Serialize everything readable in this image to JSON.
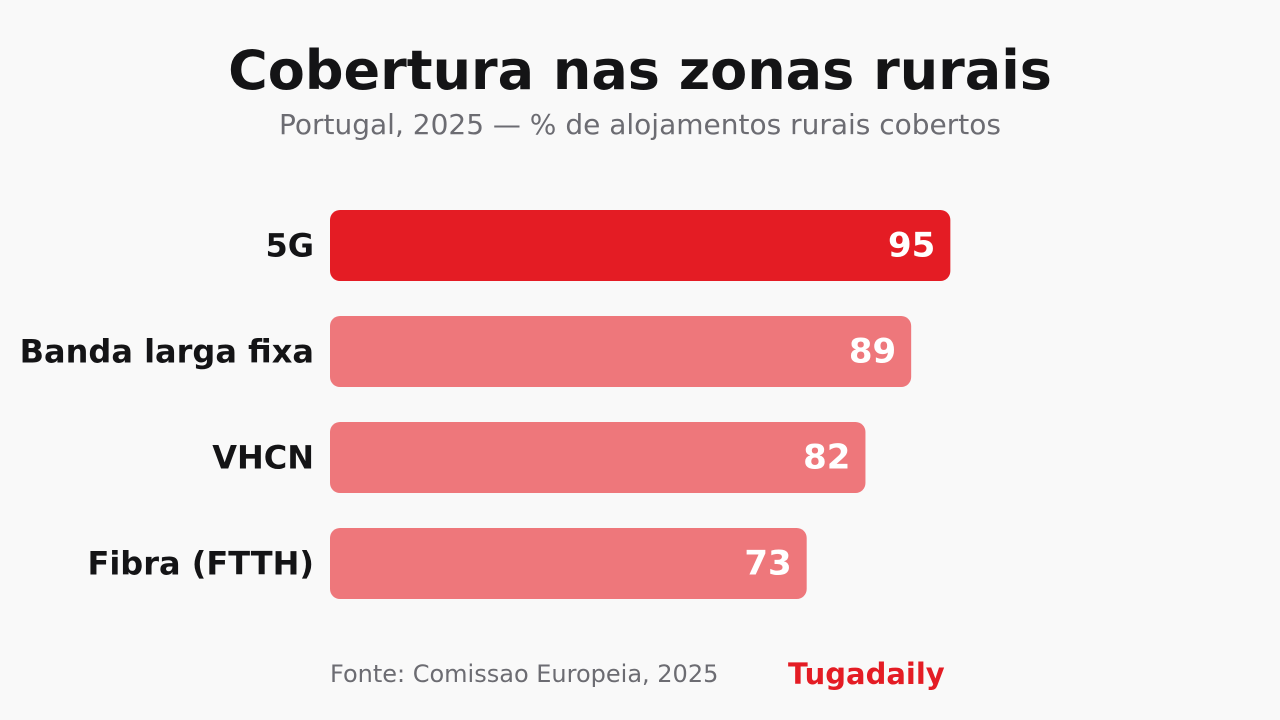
{
  "header": {
    "title": "Cobertura nas zonas rurais",
    "subtitle": "Portugal, 2025 — % de alojamentos rurais cobertos"
  },
  "footer": {
    "source": "Fonte: Comissao Europeia, 2025",
    "brand": "Tugadaily"
  },
  "colors": {
    "highlight": "#e41c24",
    "bar": "#ee777b",
    "brand": "#e41c24"
  },
  "chart_data": {
    "type": "bar",
    "orientation": "horizontal",
    "title": "Cobertura nas zonas rurais",
    "subtitle": "Portugal, 2025 — % de alojamentos rurais cobertos",
    "categories": [
      "5G",
      "Banda larga fixa",
      "VHCN",
      "Fibra (FTTH)"
    ],
    "values": [
      95,
      89,
      82,
      73
    ],
    "highlighted": "5G",
    "xlim": [
      0,
      100
    ],
    "grid": false,
    "legend": "none",
    "data_labels": true
  }
}
